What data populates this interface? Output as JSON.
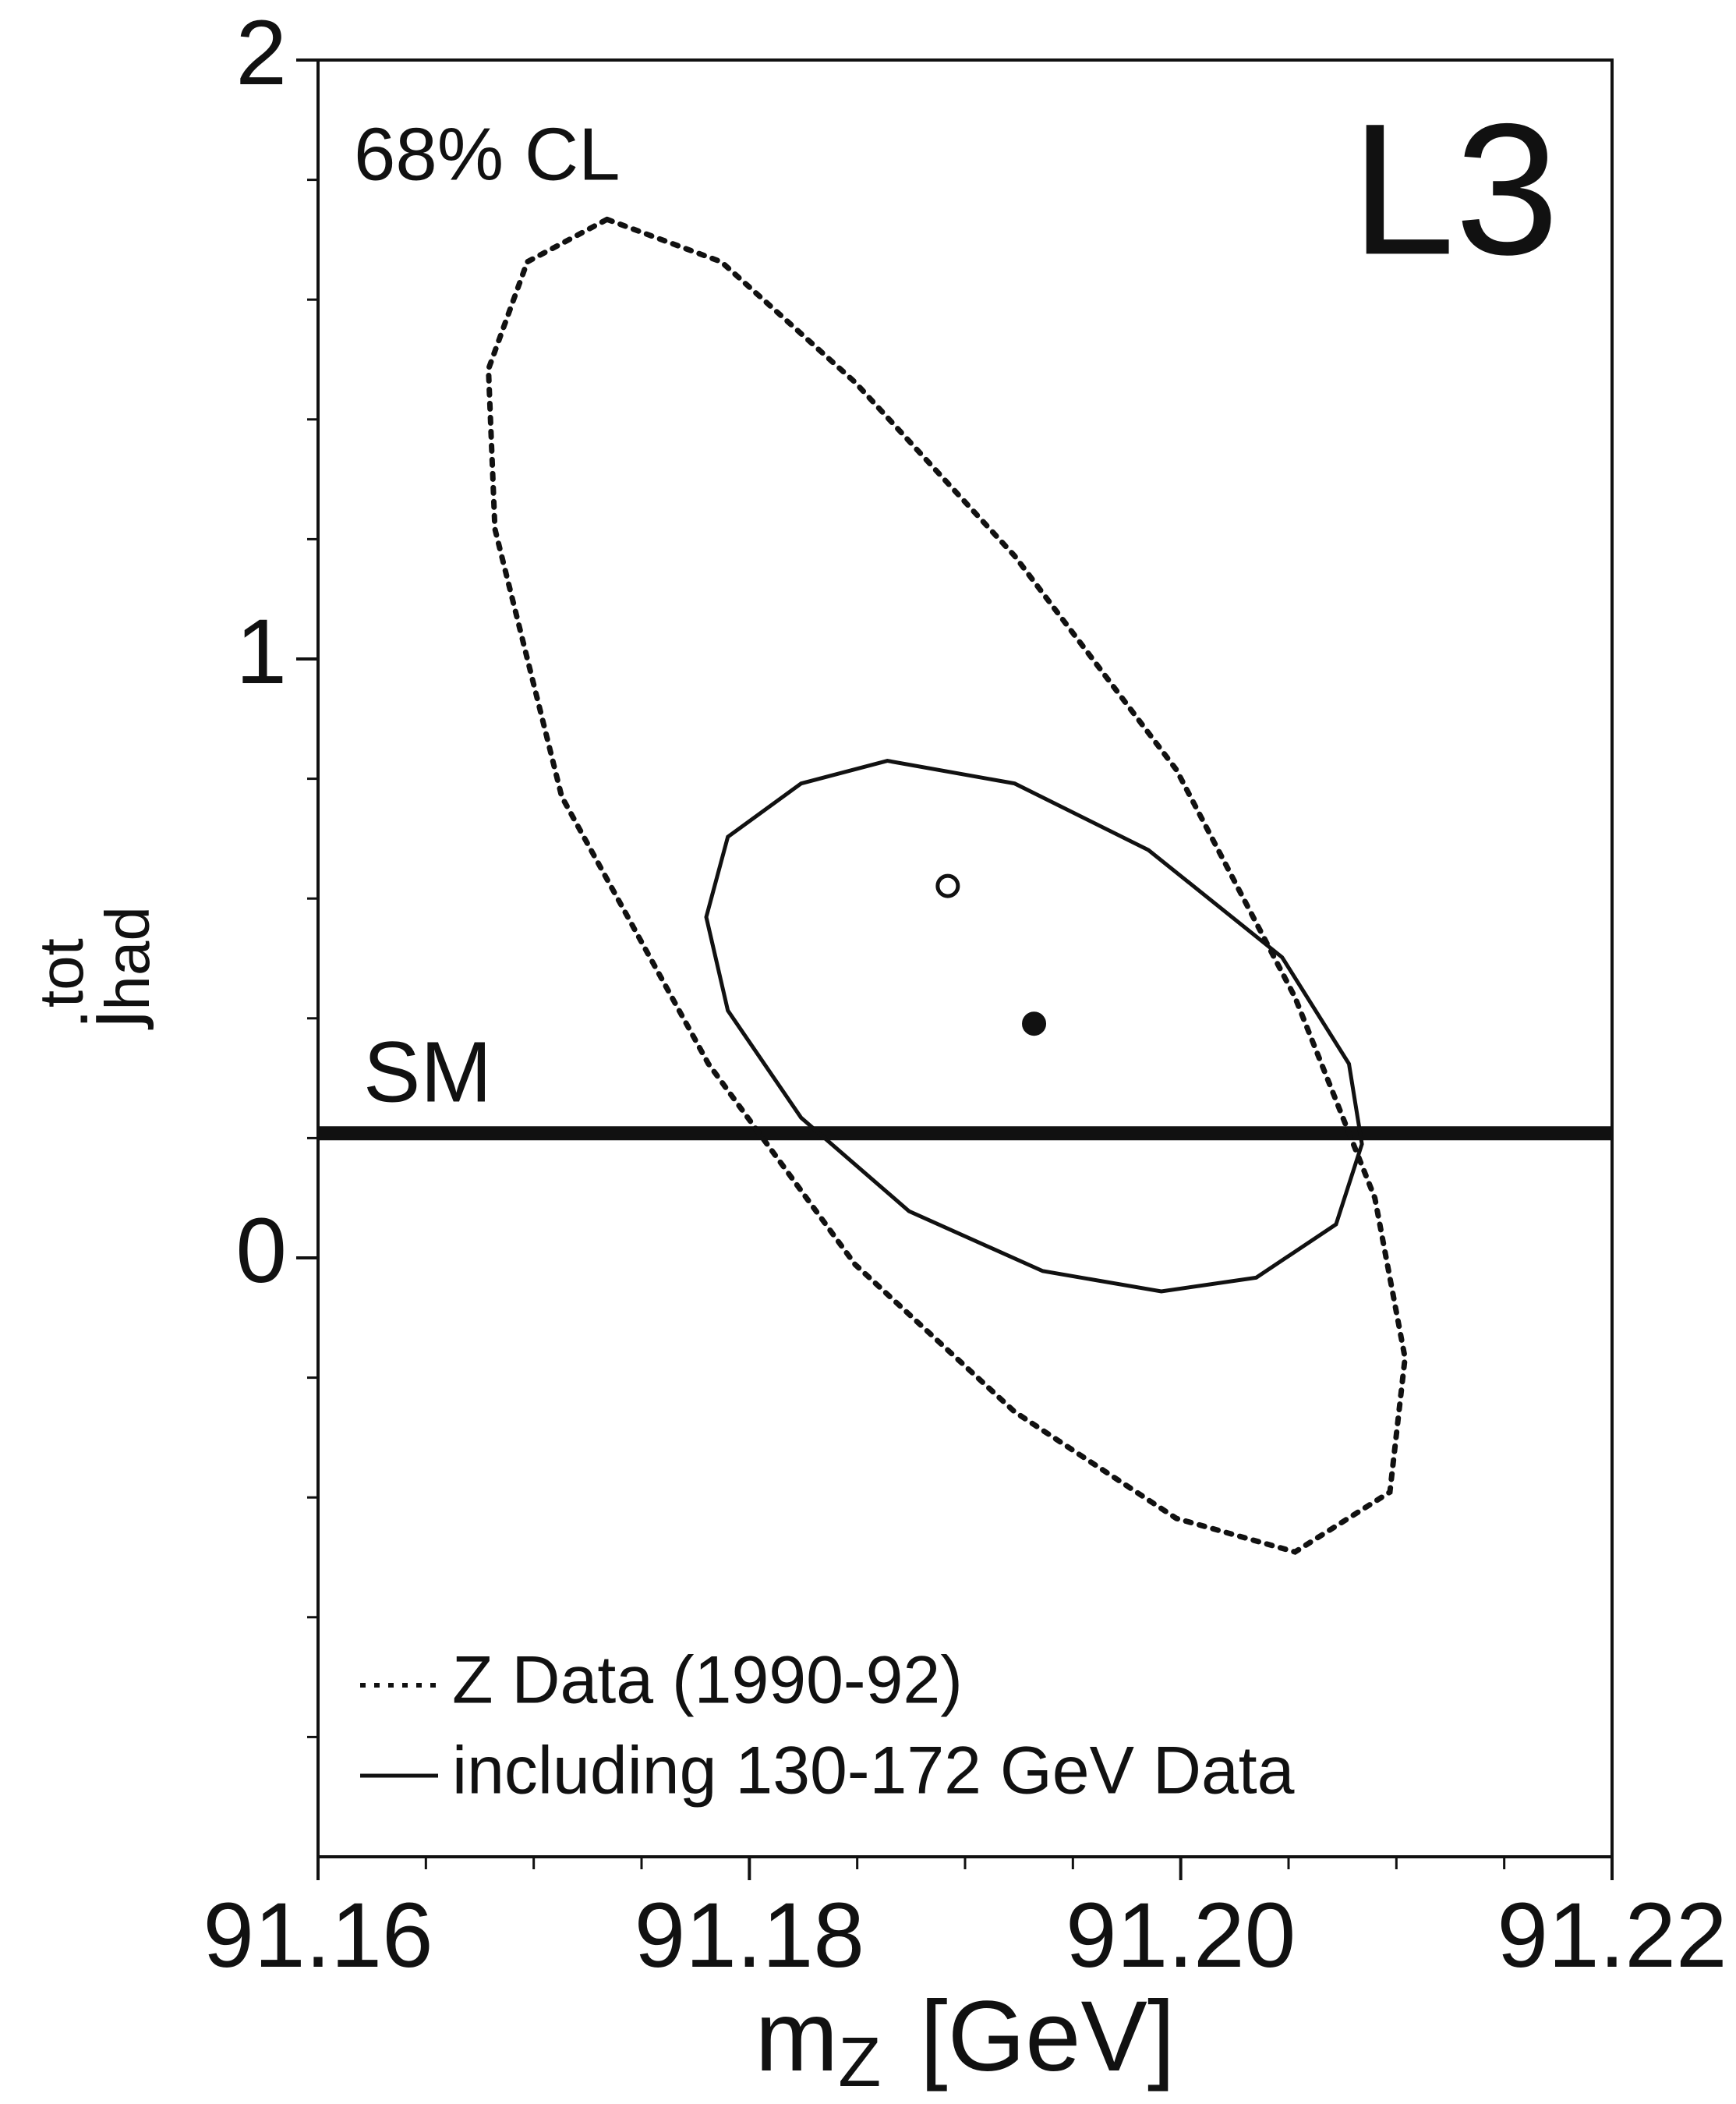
{
  "chart_data": {
    "type": "scatter",
    "annotations": {
      "confidence": "68% CL",
      "experiment": "L3"
    },
    "xlabel": {
      "main": "m",
      "sub": "Z",
      "unit": "[GeV]"
    },
    "ylabel": {
      "main": "j",
      "sup": "tot",
      "sub": "had"
    },
    "xlim": [
      91.16,
      91.22
    ],
    "xticks": [
      91.16,
      91.18,
      {
        "value": 91.2,
        "label": "91.20"
      },
      91.22
    ],
    "xminorticks": [
      91.165,
      91.17,
      91.175,
      91.185,
      91.19,
      91.195,
      91.205,
      91.21,
      91.215
    ],
    "ylim": [
      -1,
      2
    ],
    "yticks": [
      0,
      1,
      2
    ],
    "yminorticks": [
      -0.8,
      -0.6,
      -0.4,
      -0.2,
      0.2,
      0.4,
      0.6,
      0.8,
      1.2,
      1.4,
      1.6,
      1.8
    ],
    "legend": "bottom-left",
    "series": [
      {
        "name": "Z Data (1990-92)",
        "style": "dotted",
        "color": "#111111",
        "x": [
          91.1734,
          91.1787,
          91.1849,
          91.1923,
          91.1998,
          91.2053,
          91.209,
          91.2104,
          91.2097,
          91.2053,
          91.1998,
          91.1923,
          91.1849,
          91.1781,
          91.1713,
          91.1682,
          91.1679,
          91.1697
        ],
        "values": [
          1.734,
          1.663,
          1.462,
          1.172,
          0.815,
          0.435,
          0.1,
          -0.167,
          -0.391,
          -0.491,
          -0.435,
          -0.257,
          -0.011,
          0.324,
          0.77,
          1.217,
          1.484,
          1.663
        ]
      },
      {
        "name": "including 130-172 GeV Data",
        "style": "solid",
        "color": "#111111",
        "x": [
          91.1864,
          91.1923,
          91.1985,
          91.2047,
          91.2078,
          91.2084,
          91.2072,
          91.2035,
          91.1991,
          91.1936,
          91.1874,
          91.1824,
          91.179,
          91.178,
          91.179,
          91.1824
        ],
        "values": [
          0.83,
          0.792,
          0.681,
          0.502,
          0.324,
          0.19,
          0.056,
          -0.033,
          -0.056,
          -0.022,
          0.078,
          0.234,
          0.413,
          0.569,
          0.703,
          0.792
        ]
      }
    ],
    "points": [
      {
        "marker": "open",
        "x": 91.1892,
        "y": 0.621
      },
      {
        "marker": "filled",
        "x": 91.1932,
        "y": 0.391
      }
    ],
    "reference_line": {
      "label": "SM",
      "value": 0.208
    }
  }
}
